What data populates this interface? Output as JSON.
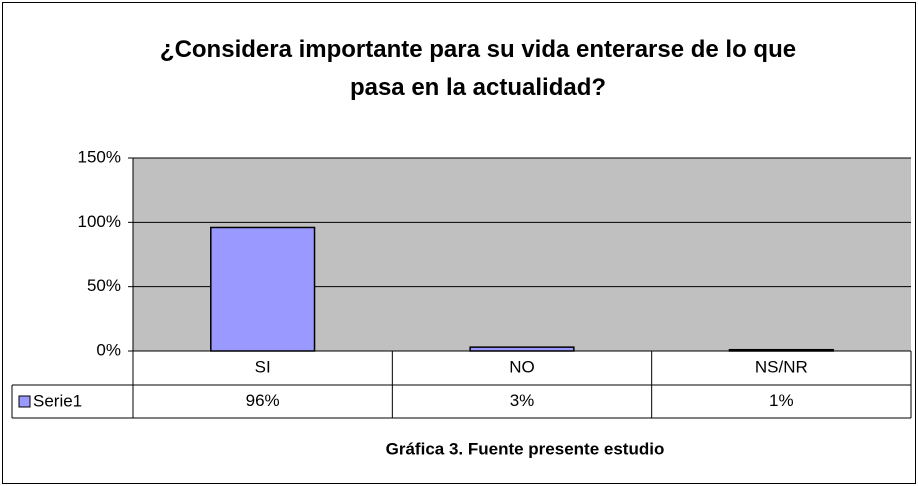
{
  "chart_data": {
    "type": "bar",
    "title": "¿Considera importante para su vida enterarse de lo que pasa en la actualidad?",
    "categories": [
      "SI",
      "NO",
      "NS/NR"
    ],
    "series": [
      {
        "name": "Serie1",
        "color": "#9999ff",
        "values": [
          96,
          3,
          1
        ],
        "value_labels": [
          "96%",
          "3%",
          "1%"
        ]
      }
    ],
    "ylim": [
      0,
      150
    ],
    "yticks": [
      {
        "value": 0,
        "label": "0%"
      },
      {
        "value": 50,
        "label": "50%"
      },
      {
        "value": 100,
        "label": "100%"
      },
      {
        "value": 150,
        "label": "150%"
      }
    ],
    "grid": true,
    "caption": "Gráfica 3. Fuente presente estudio"
  }
}
